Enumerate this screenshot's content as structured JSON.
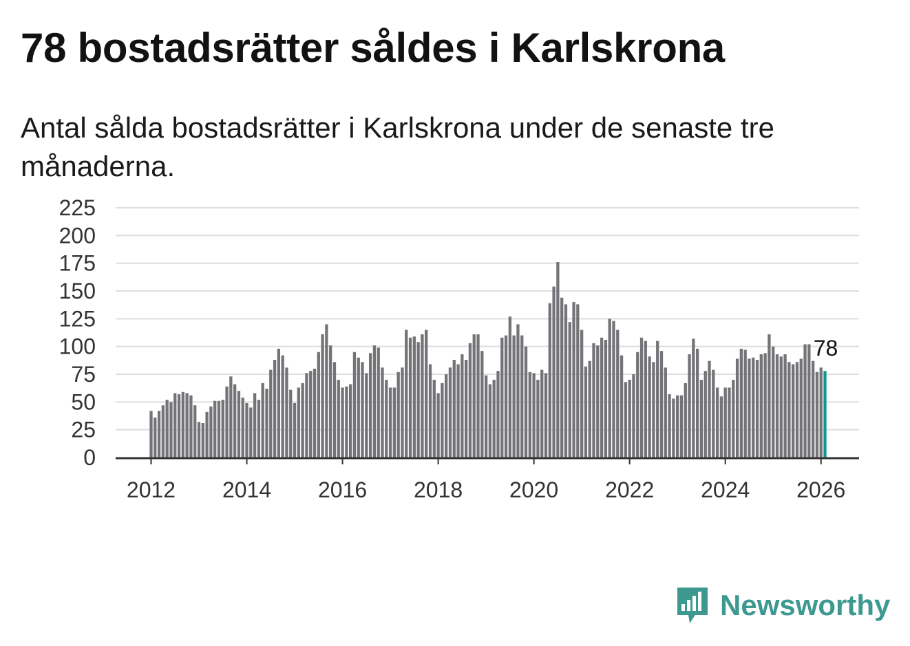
{
  "title": "78 bostadsrätter såldes i Karlskrona",
  "subtitle": "Antal sålda bostadsrätter i Karlskrona under de senaste tre månaderna.",
  "brand": {
    "name": "Newsworthy",
    "color": "#3d9990",
    "icon": "newsworthy-logo-icon"
  },
  "colors": {
    "bar": "#747377",
    "highlight": "#12958f",
    "grid": "#dddddd",
    "axis": "#333333"
  },
  "chart_data": {
    "type": "bar",
    "title": "78 bostadsrätter såldes i Karlskrona",
    "xlabel": "",
    "ylabel": "",
    "ylim": [
      0,
      225
    ],
    "y_ticks": [
      "0",
      "25",
      "50",
      "75",
      "100",
      "125",
      "150",
      "175",
      "200",
      "225"
    ],
    "x_ticks": [
      "2012",
      "2014",
      "2016",
      "2018",
      "2020",
      "2022",
      "2024",
      "2026"
    ],
    "x_start": "2012-01",
    "frequency": "monthly",
    "highlight_label": "78",
    "values": [
      42,
      36,
      42,
      47,
      52,
      50,
      58,
      57,
      59,
      58,
      56,
      47,
      32,
      31,
      41,
      46,
      51,
      51,
      52,
      64,
      73,
      66,
      60,
      54,
      49,
      45,
      58,
      52,
      67,
      62,
      79,
      88,
      98,
      92,
      81,
      61,
      49,
      63,
      67,
      76,
      78,
      80,
      95,
      111,
      120,
      101,
      86,
      70,
      63,
      64,
      66,
      95,
      90,
      86,
      76,
      94,
      101,
      99,
      81,
      70,
      63,
      63,
      77,
      81,
      115,
      108,
      109,
      104,
      111,
      115,
      84,
      70,
      58,
      67,
      75,
      81,
      88,
      84,
      93,
      88,
      103,
      111,
      111,
      96,
      74,
      66,
      70,
      78,
      108,
      110,
      127,
      110,
      120,
      110,
      100,
      77,
      76,
      70,
      79,
      76,
      139,
      154,
      176,
      144,
      138,
      122,
      140,
      138,
      115,
      82,
      87,
      103,
      101,
      108,
      106,
      125,
      123,
      115,
      92,
      68,
      70,
      75,
      95,
      108,
      105,
      91,
      86,
      105,
      96,
      81,
      57,
      53,
      56,
      56,
      67,
      93,
      107,
      98,
      70,
      78,
      87,
      79,
      63,
      55,
      63,
      63,
      70,
      89,
      98,
      97,
      89,
      90,
      88,
      93,
      94,
      111,
      100,
      93,
      91,
      93,
      86,
      84,
      86,
      89,
      102,
      102,
      87,
      77,
      81,
      78
    ]
  }
}
